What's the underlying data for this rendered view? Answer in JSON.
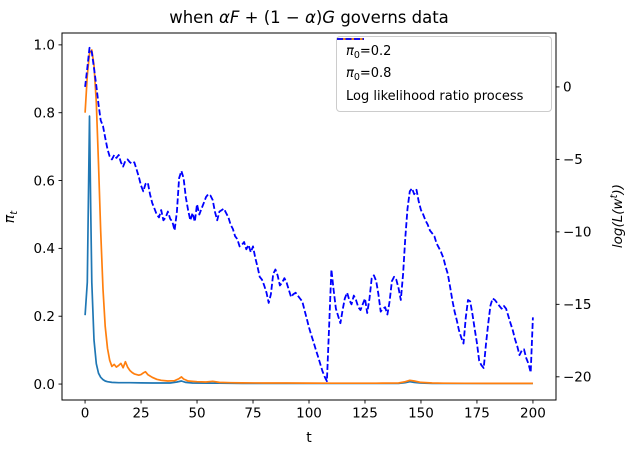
{
  "title": {
    "p1": "when ",
    "p2": "αF",
    "p3": " + (1 − ",
    "p4": "α",
    "p5": ")",
    "p6": "G",
    "p7": " governs data"
  },
  "xlabel": "t",
  "ylabel_left": {
    "main": "π",
    "sub": "t"
  },
  "ylabel_right": {
    "pre": "log(L(w",
    "sup": "t",
    "post": "))"
  },
  "legend": {
    "position": "upper right",
    "items": [
      {
        "pi": "π",
        "sub": "0",
        "val": "=0.2",
        "color": "#1f77b4",
        "style": "solid"
      },
      {
        "pi": "π",
        "sub": "0",
        "val": "=0.8",
        "color": "#ff7f0e",
        "style": "solid"
      },
      {
        "label": "Log likelihood ratio process",
        "color": "#0000ff",
        "style": "dashed"
      }
    ]
  },
  "chart_data": {
    "type": "line",
    "title": "when αF + (1 − α)G governs data",
    "xlabel": "t",
    "ylabel_left": "π_t",
    "ylabel_right": "log(L(w^t))",
    "grid": false,
    "legend_position": "upper right",
    "xlim": [
      -10.3,
      210.3
    ],
    "xticks": [
      0,
      25,
      50,
      75,
      100,
      125,
      150,
      175,
      200
    ],
    "ylim_left": [
      -0.047,
      1.035
    ],
    "yticks_left": [
      0.0,
      0.2,
      0.4,
      0.6,
      0.8,
      1.0
    ],
    "ylim_right": [
      -21.6,
      3.72
    ],
    "yticks_right": [
      0,
      -5,
      -10,
      -15,
      -20
    ],
    "series": [
      {
        "id": "pi0-02",
        "name": "π₀=0.2",
        "axis": "left",
        "color": "#1f77b4",
        "style": "solid",
        "points": [
          [
            0,
            0.203
          ],
          [
            1,
            0.3
          ],
          [
            2,
            0.79
          ],
          [
            2.5,
            0.52
          ],
          [
            3,
            0.3
          ],
          [
            4,
            0.13
          ],
          [
            5,
            0.06
          ],
          [
            6,
            0.032
          ],
          [
            7,
            0.02
          ],
          [
            8,
            0.013
          ],
          [
            9,
            0.009
          ],
          [
            10,
            0.007
          ],
          [
            12,
            0.005
          ],
          [
            15,
            0.004
          ],
          [
            20,
            0.004
          ],
          [
            25,
            0.0035
          ],
          [
            30,
            0.003
          ],
          [
            38,
            0.003
          ],
          [
            41,
            0.006
          ],
          [
            43,
            0.009
          ],
          [
            45,
            0.005
          ],
          [
            48,
            0.003
          ],
          [
            55,
            0.0028
          ],
          [
            60,
            0.0025
          ],
          [
            70,
            0.002
          ],
          [
            80,
            0.002
          ],
          [
            90,
            0.002
          ],
          [
            100,
            0.002
          ],
          [
            110,
            0.002
          ],
          [
            120,
            0.002
          ],
          [
            130,
            0.002
          ],
          [
            140,
            0.002
          ],
          [
            143,
            0.004
          ],
          [
            145,
            0.007
          ],
          [
            147,
            0.005
          ],
          [
            150,
            0.003
          ],
          [
            155,
            0.002
          ],
          [
            160,
            0.002
          ],
          [
            170,
            0.002
          ],
          [
            180,
            0.002
          ],
          [
            190,
            0.002
          ],
          [
            200,
            0.002
          ]
        ]
      },
      {
        "id": "pi0-08",
        "name": "π₀=0.8",
        "axis": "left",
        "color": "#ff7f0e",
        "style": "solid",
        "points": [
          [
            0,
            0.8
          ],
          [
            1,
            0.91
          ],
          [
            2,
            0.975
          ],
          [
            3,
            0.985
          ],
          [
            4,
            0.94
          ],
          [
            5,
            0.83
          ],
          [
            6,
            0.65
          ],
          [
            7,
            0.45
          ],
          [
            8,
            0.28
          ],
          [
            9,
            0.17
          ],
          [
            10,
            0.105
          ],
          [
            11,
            0.07
          ],
          [
            12,
            0.052
          ],
          [
            13,
            0.058
          ],
          [
            14,
            0.05
          ],
          [
            15,
            0.055
          ],
          [
            16,
            0.061
          ],
          [
            17,
            0.048
          ],
          [
            18,
            0.066
          ],
          [
            19,
            0.05
          ],
          [
            20,
            0.04
          ],
          [
            21,
            0.034
          ],
          [
            22,
            0.03
          ],
          [
            24,
            0.026
          ],
          [
            25,
            0.028
          ],
          [
            26,
            0.033
          ],
          [
            27,
            0.036
          ],
          [
            28,
            0.028
          ],
          [
            30,
            0.02
          ],
          [
            32,
            0.014
          ],
          [
            34,
            0.011
          ],
          [
            37,
            0.009
          ],
          [
            40,
            0.01
          ],
          [
            42,
            0.016
          ],
          [
            43,
            0.021
          ],
          [
            44,
            0.015
          ],
          [
            46,
            0.009
          ],
          [
            50,
            0.007
          ],
          [
            54,
            0.006
          ],
          [
            57,
            0.008
          ],
          [
            60,
            0.005
          ],
          [
            65,
            0.004
          ],
          [
            70,
            0.0035
          ],
          [
            80,
            0.003
          ],
          [
            90,
            0.003
          ],
          [
            100,
            0.0028
          ],
          [
            110,
            0.0025
          ],
          [
            120,
            0.0025
          ],
          [
            130,
            0.0025
          ],
          [
            140,
            0.003
          ],
          [
            143,
            0.007
          ],
          [
            145,
            0.011
          ],
          [
            147,
            0.009
          ],
          [
            150,
            0.005
          ],
          [
            155,
            0.003
          ],
          [
            160,
            0.0025
          ],
          [
            170,
            0.0022
          ],
          [
            180,
            0.002
          ],
          [
            190,
            0.002
          ],
          [
            200,
            0.002
          ]
        ]
      },
      {
        "id": "llr",
        "name": "Log likelihood ratio process",
        "axis": "right",
        "color": "#0000ff",
        "style": "dashed",
        "t0": 0,
        "dt": 1,
        "values": [
          0,
          1.3,
          2.7,
          2.4,
          1.3,
          0.1,
          -1.2,
          -2.3,
          -2.7,
          -3.5,
          -4.3,
          -4.8,
          -5.0,
          -4.7,
          -4.9,
          -4.7,
          -5.2,
          -5.5,
          -5.1,
          -5.0,
          -5.2,
          -5.3,
          -5.2,
          -5.7,
          -6.2,
          -6.8,
          -7.2,
          -6.7,
          -6.6,
          -7.4,
          -8.0,
          -8.4,
          -8.8,
          -9.0,
          -8.5,
          -9.2,
          -9.0,
          -8.6,
          -9.1,
          -9.3,
          -9.9,
          -8.6,
          -6.3,
          -5.8,
          -6.3,
          -7.6,
          -8.5,
          -9.2,
          -8.7,
          -9.3,
          -8.1,
          -8.8,
          -8.4,
          -8.0,
          -7.6,
          -7.4,
          -7.5,
          -7.8,
          -8.6,
          -9.2,
          -8.6,
          -8.5,
          -8.4,
          -8.7,
          -9.0,
          -9.5,
          -9.8,
          -10.3,
          -10.5,
          -11.0,
          -10.9,
          -10.7,
          -11.2,
          -10.9,
          -11.4,
          -11.0,
          -11.8,
          -12.4,
          -13.1,
          -13.3,
          -13.7,
          -14.2,
          -14.9,
          -14.3,
          -12.9,
          -12.6,
          -13.0,
          -13.7,
          -13.5,
          -13.2,
          -13.5,
          -14.0,
          -14.5,
          -14.3,
          -14.2,
          -14.4,
          -14.6,
          -14.8,
          -15.4,
          -16.0,
          -16.6,
          -17.1,
          -17.6,
          -18.1,
          -18.6,
          -19.1,
          -19.6,
          -20.0,
          -20.3,
          -16.4,
          -12.6,
          -14.0,
          -15.3,
          -15.8,
          -16.3,
          -15.4,
          -14.6,
          -14.2,
          -14.7,
          -15.0,
          -14.4,
          -14.7,
          -15.2,
          -15.4,
          -15.0,
          -14.6,
          -15.6,
          -14.6,
          -13.2,
          -13.0,
          -13.4,
          -14.3,
          -15.5,
          -15.3,
          -15.2,
          -15.7,
          -14.8,
          -13.4,
          -13.1,
          -13.3,
          -13.9,
          -14.7,
          -12.9,
          -10.4,
          -8.4,
          -7.2,
          -7.0,
          -7.4,
          -7.1,
          -7.9,
          -8.5,
          -8.8,
          -9.2,
          -9.5,
          -9.9,
          -10.1,
          -10.3,
          -10.8,
          -11.1,
          -11.4,
          -11.8,
          -12.4,
          -12.9,
          -13.8,
          -14.7,
          -15.5,
          -16.1,
          -16.8,
          -17.3,
          -17.7,
          -15.9,
          -14.7,
          -14.8,
          -15.7,
          -16.7,
          -17.7,
          -18.9,
          -19.2,
          -19.4,
          -17.8,
          -16.4,
          -15.1,
          -14.6,
          -14.7,
          -14.9,
          -15.1,
          -15.3,
          -15.1,
          -15.3,
          -15.8,
          -16.3,
          -16.8,
          -17.4,
          -17.9,
          -18.5,
          -18.2,
          -18.1,
          -18.7,
          -19.1,
          -19.7,
          -15.9
        ]
      }
    ]
  }
}
